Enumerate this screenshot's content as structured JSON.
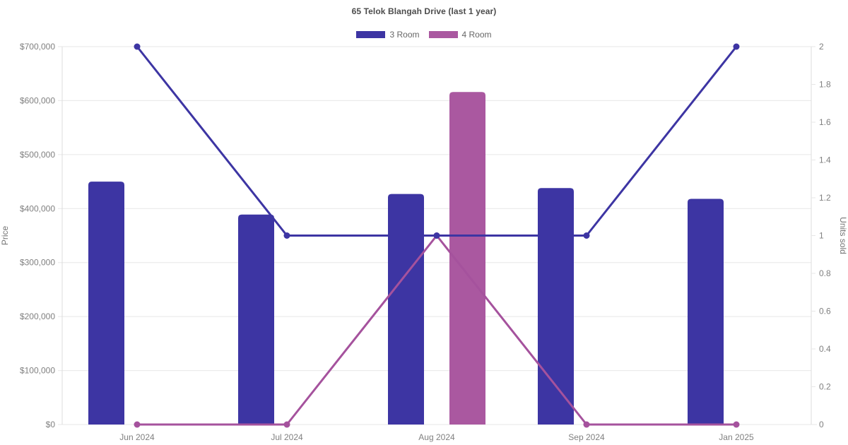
{
  "title": "65 Telok Blangah Drive (last 1 year)",
  "colors": {
    "three_room": "#3d35a3",
    "four_room": "#aa58a0",
    "four_room_line": "#a5529d",
    "grid": "#e7e7e7",
    "axis_border": "#dcdcdc",
    "tick_text": "#808080",
    "axis_title_text": "#757575"
  },
  "chart_data": {
    "type": "bar+line",
    "title": "65 Telok Blangah Drive (last 1 year)",
    "categories": [
      "Jun 2024",
      "Jul 2024",
      "Aug 2024",
      "Sep 2024",
      "Jan 2025"
    ],
    "series": [
      {
        "name": "3 Room",
        "color": "#3d35a3",
        "line_color": "#3d35a3",
        "prices": [
          450000,
          389000,
          427000,
          438000,
          418000
        ],
        "units_sold": [
          2,
          1,
          1,
          1,
          2
        ]
      },
      {
        "name": "4 Room",
        "color": "#aa58a0",
        "line_color": "#a5529d",
        "prices": [
          null,
          null,
          616000,
          null,
          null
        ],
        "units_sold": [
          0,
          0,
          1,
          0,
          0
        ]
      }
    ],
    "left_axis": {
      "title": "Price",
      "min": 0,
      "max": 700000,
      "tick_step": 100000,
      "ticks": [
        "$0",
        "$100,000",
        "$200,000",
        "$300,000",
        "$400,000",
        "$500,000",
        "$600,000",
        "$700,000"
      ]
    },
    "right_axis": {
      "title": "Units sold",
      "min": 0,
      "max": 2,
      "tick_step": 0.2,
      "ticks": [
        "0",
        "0.2",
        "0.4",
        "0.6",
        "0.8",
        "1",
        "1.2",
        "1.4",
        "1.6",
        "1.8",
        "2"
      ]
    },
    "grid": "horizontal-only",
    "legend_position": "top",
    "bars_map_to": "left_axis (Price)",
    "lines_map_to": "right_axis (Units sold)"
  }
}
